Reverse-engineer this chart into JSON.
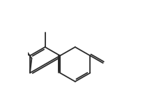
{
  "bg_color": "#ffffff",
  "line_color": "#2a2a2a",
  "line_width": 1.3,
  "fig_width": 2.18,
  "fig_height": 1.46,
  "dpi": 100
}
